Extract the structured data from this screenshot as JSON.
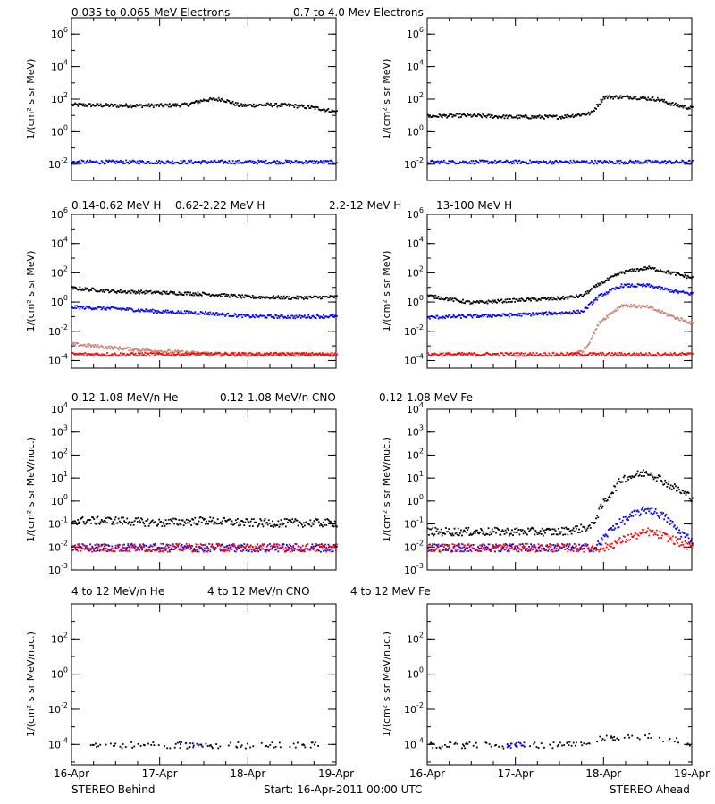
{
  "colors": {
    "black": "#000000",
    "blue": "#0000ff",
    "tan": "#c8826e",
    "red": "#ff0000"
  },
  "rows": [
    {
      "legend": [
        {
          "text": "0.035 to 0.065 MeV Electrons",
          "color": "#000000"
        },
        {
          "text": "0.7 to 4.0 Mev Electrons",
          "color": "#0000ff"
        }
      ],
      "ylabel": "1/(cm² s sr MeV)"
    },
    {
      "legend": [
        {
          "text": "0.14-0.62 MeV H",
          "color": "#000000"
        },
        {
          "text": "0.62-2.22 MeV H",
          "color": "#0000ff"
        },
        {
          "text": "2.2-12 MeV H",
          "color": "#c8826e"
        },
        {
          "text": "13-100 MeV H",
          "color": "#ff0000"
        }
      ],
      "ylabel": "1/(cm² s sr MeV)"
    },
    {
      "legend": [
        {
          "text": "0.12-1.08 MeV/n He",
          "color": "#000000"
        },
        {
          "text": "0.12-1.08 MeV/n CNO",
          "color": "#0000ff"
        },
        {
          "text": "0.12-1.08 MeV Fe",
          "color": "#ff0000"
        }
      ],
      "ylabel": "1/(cm² s sr MeV/nuc.)"
    },
    {
      "legend": [
        {
          "text": "4 to 12 MeV/n He",
          "color": "#000000"
        },
        {
          "text": "4 to 12 MeV/n CNO",
          "color": "#0000ff"
        },
        {
          "text": "4 to 12 MeV Fe",
          "color": "#ff0000"
        }
      ],
      "ylabel": "1/(cm² s sr MeV/nuc.)"
    }
  ],
  "x_ticks": [
    "16-Apr",
    "17-Apr",
    "18-Apr",
    "19-Apr"
  ],
  "footer": {
    "left": "STEREO Behind",
    "center": "Start: 16-Apr-2011 00:00 UTC",
    "right": "STEREO Ahead"
  },
  "chart_data": [
    {
      "type": "scatter",
      "panel": "behind-electrons",
      "yscale": "log",
      "ylim": [
        0.001,
        10000000
      ],
      "yticks": [
        0.01,
        1,
        100,
        10000,
        1000000
      ],
      "xlim": [
        0,
        3
      ],
      "series": [
        {
          "name": "0.035 to 0.065 MeV Electrons",
          "color": "#000000",
          "x": [
            0,
            0.5,
            1,
            1.3,
            1.5,
            1.7,
            1.9,
            2.2,
            2.5,
            2.8,
            3
          ],
          "y": [
            50,
            45,
            45,
            50,
            100,
            110,
            45,
            50,
            45,
            30,
            18
          ]
        },
        {
          "name": "0.7 to 4.0 Mev Electrons",
          "color": "#0000ff",
          "x": [
            0,
            1,
            2,
            3
          ],
          "y": [
            0.015,
            0.015,
            0.015,
            0.015
          ]
        }
      ]
    },
    {
      "type": "scatter",
      "panel": "ahead-electrons",
      "yscale": "log",
      "ylim": [
        0.001,
        10000000
      ],
      "yticks": [
        0.01,
        1,
        100,
        10000,
        1000000
      ],
      "xlim": [
        0,
        3
      ],
      "series": [
        {
          "name": "0.035 to 0.065 MeV Electrons",
          "color": "#000000",
          "x": [
            0,
            0.4,
            1,
            1.5,
            1.85,
            2,
            2.3,
            2.6,
            2.8,
            3
          ],
          "y": [
            10,
            11,
            9,
            9,
            15,
            150,
            150,
            110,
            50,
            30
          ]
        },
        {
          "name": "0.7 to 4.0 Mev Electrons",
          "color": "#0000ff",
          "x": [
            0,
            1,
            2,
            3
          ],
          "y": [
            0.015,
            0.015,
            0.015,
            0.015
          ]
        }
      ]
    },
    {
      "type": "scatter",
      "panel": "behind-protons",
      "yscale": "log",
      "ylim": [
        3e-05,
        1000000
      ],
      "yticks": [
        0.0001,
        0.01,
        1,
        100,
        10000,
        1000000
      ],
      "xlim": [
        0,
        3
      ],
      "series": [
        {
          "name": "0.14-0.62 MeV H",
          "color": "#000000",
          "x": [
            0,
            0.5,
            1,
            1.5,
            2,
            2.5,
            3
          ],
          "y": [
            10,
            6,
            5,
            4,
            2.5,
            2.2,
            2.5
          ]
        },
        {
          "name": "0.62-2.22 MeV H",
          "color": "#0000ff",
          "x": [
            0,
            0.5,
            1,
            1.5,
            2,
            2.5,
            3
          ],
          "y": [
            0.5,
            0.4,
            0.25,
            0.2,
            0.12,
            0.11,
            0.12
          ]
        },
        {
          "name": "2.2-12 MeV H",
          "color": "#c8826e",
          "x": [
            0,
            0.5,
            1,
            1.5,
            2,
            2.5,
            3
          ],
          "y": [
            0.0015,
            0.0008,
            0.0005,
            0.00035,
            0.0003,
            0.0003,
            0.0003
          ]
        },
        {
          "name": "13-100 MeV H",
          "color": "#ff0000",
          "x": [
            0,
            1,
            2,
            3
          ],
          "y": [
            0.0003,
            0.0003,
            0.0003,
            0.0003
          ]
        }
      ]
    },
    {
      "type": "scatter",
      "panel": "ahead-protons",
      "yscale": "log",
      "ylim": [
        3e-05,
        1000000
      ],
      "yticks": [
        0.0001,
        0.01,
        1,
        100,
        10000,
        1000000
      ],
      "xlim": [
        0,
        3
      ],
      "series": [
        {
          "name": "0.14-0.62 MeV H",
          "color": "#000000",
          "x": [
            0,
            0.5,
            1,
            1.5,
            1.75,
            1.95,
            2.2,
            2.5,
            2.8,
            3
          ],
          "y": [
            3,
            1,
            1.5,
            2,
            3,
            20,
            120,
            250,
            100,
            50
          ]
        },
        {
          "name": "0.62-2.22 MeV H",
          "color": "#0000ff",
          "x": [
            0,
            0.5,
            1,
            1.5,
            1.75,
            1.95,
            2.2,
            2.5,
            2.8,
            3
          ],
          "y": [
            0.1,
            0.12,
            0.15,
            0.2,
            0.25,
            3,
            15,
            15,
            6,
            4
          ]
        },
        {
          "name": "2.2-12 MeV H",
          "color": "#c8826e",
          "x": [
            1.6,
            1.75,
            1.8,
            1.95,
            2.2,
            2.5,
            2.8,
            3
          ],
          "y": [
            0.0003,
            0.0005,
            0.001,
            0.05,
            0.7,
            0.5,
            0.1,
            0.04
          ]
        },
        {
          "name": "13-100 MeV H",
          "color": "#ff0000",
          "x": [
            0,
            1,
            2,
            3
          ],
          "y": [
            0.0003,
            0.0003,
            0.0003,
            0.0003
          ]
        }
      ]
    },
    {
      "type": "scatter",
      "panel": "behind-heavy-low",
      "yscale": "log",
      "ylim": [
        0.001,
        10000
      ],
      "yticks": [
        0.001,
        0.01,
        0.1,
        1,
        10,
        100,
        1000,
        10000
      ],
      "xlim": [
        0,
        3
      ],
      "series": [
        {
          "name": "0.12-1.08 MeV/n He",
          "color": "#000000",
          "x": [
            0,
            0.5,
            1,
            1.5,
            2,
            2.5,
            3
          ],
          "y": [
            0.15,
            0.15,
            0.12,
            0.15,
            0.12,
            0.12,
            0.12
          ]
        },
        {
          "name": "0.12-1.08 MeV/n CNO",
          "color": "#0000ff",
          "x": [
            0,
            1,
            2,
            3
          ],
          "y": [
            0.01,
            0.01,
            0.01,
            0.01
          ]
        },
        {
          "name": "0.12-1.08 MeV Fe",
          "color": "#ff0000",
          "x": [
            0,
            1,
            2,
            3
          ],
          "y": [
            0.01,
            0.01,
            0.01,
            0.01
          ]
        }
      ]
    },
    {
      "type": "scatter",
      "panel": "ahead-heavy-low",
      "yscale": "log",
      "ylim": [
        0.001,
        10000
      ],
      "yticks": [
        0.001,
        0.01,
        0.1,
        1,
        10,
        100,
        1000,
        10000
      ],
      "xlim": [
        0,
        3
      ],
      "series": [
        {
          "name": "0.12-1.08 MeV/n He",
          "color": "#000000",
          "x": [
            0,
            0.5,
            1,
            1.5,
            1.85,
            2,
            2.2,
            2.5,
            2.8,
            3
          ],
          "y": [
            0.05,
            0.05,
            0.05,
            0.05,
            0.08,
            1,
            10,
            20,
            4,
            1.5
          ]
        },
        {
          "name": "0.12-1.08 MeV/n CNO",
          "color": "#0000ff",
          "x": [
            0,
            1,
            1.9,
            2.1,
            2.35,
            2.5,
            2.7,
            2.85,
            3
          ],
          "y": [
            0.01,
            0.01,
            0.01,
            0.08,
            0.3,
            0.5,
            0.2,
            0.05,
            0.02
          ]
        },
        {
          "name": "0.12-1.08 MeV Fe",
          "color": "#ff0000",
          "x": [
            0,
            1,
            2,
            2.3,
            2.5,
            2.7,
            3
          ],
          "y": [
            0.01,
            0.01,
            0.01,
            0.03,
            0.05,
            0.03,
            0.01
          ]
        }
      ]
    },
    {
      "type": "scatter",
      "panel": "behind-heavy-high",
      "yscale": "log",
      "ylim": [
        7e-06,
        10000
      ],
      "yticks": [
        0.0001,
        0.01,
        1,
        100
      ],
      "xlim": [
        0,
        3
      ],
      "series": [
        {
          "name": "4 to 12 MeV/n He",
          "color": "#000000",
          "x": [
            0.2,
            1,
            2,
            2.8
          ],
          "y": [
            0.0001,
            0.0001,
            0.0001,
            0.0001
          ]
        },
        {
          "name": "4 to 12 MeV/n CNO",
          "color": "#0000ff",
          "x": [
            1.2,
            1.5
          ],
          "y": [
            0.0001,
            0.0001
          ]
        }
      ]
    },
    {
      "type": "scatter",
      "panel": "ahead-heavy-high",
      "yscale": "log",
      "ylim": [
        7e-06,
        10000
      ],
      "yticks": [
        0.0001,
        0.01,
        1,
        100
      ],
      "xlim": [
        0,
        3
      ],
      "series": [
        {
          "name": "4 to 12 MeV/n He",
          "color": "#000000",
          "x": [
            0,
            1,
            1.6,
            1.9,
            2.2,
            2.5,
            2.8,
            3
          ],
          "y": [
            0.0001,
            0.0001,
            0.0001,
            0.0002,
            0.0003,
            0.0003,
            0.0002,
            0.0001
          ]
        },
        {
          "name": "4 to 12 MeV/n CNO",
          "color": "#0000ff",
          "x": [
            0.9,
            1.1
          ],
          "y": [
            0.0001,
            0.0001
          ]
        }
      ]
    }
  ]
}
